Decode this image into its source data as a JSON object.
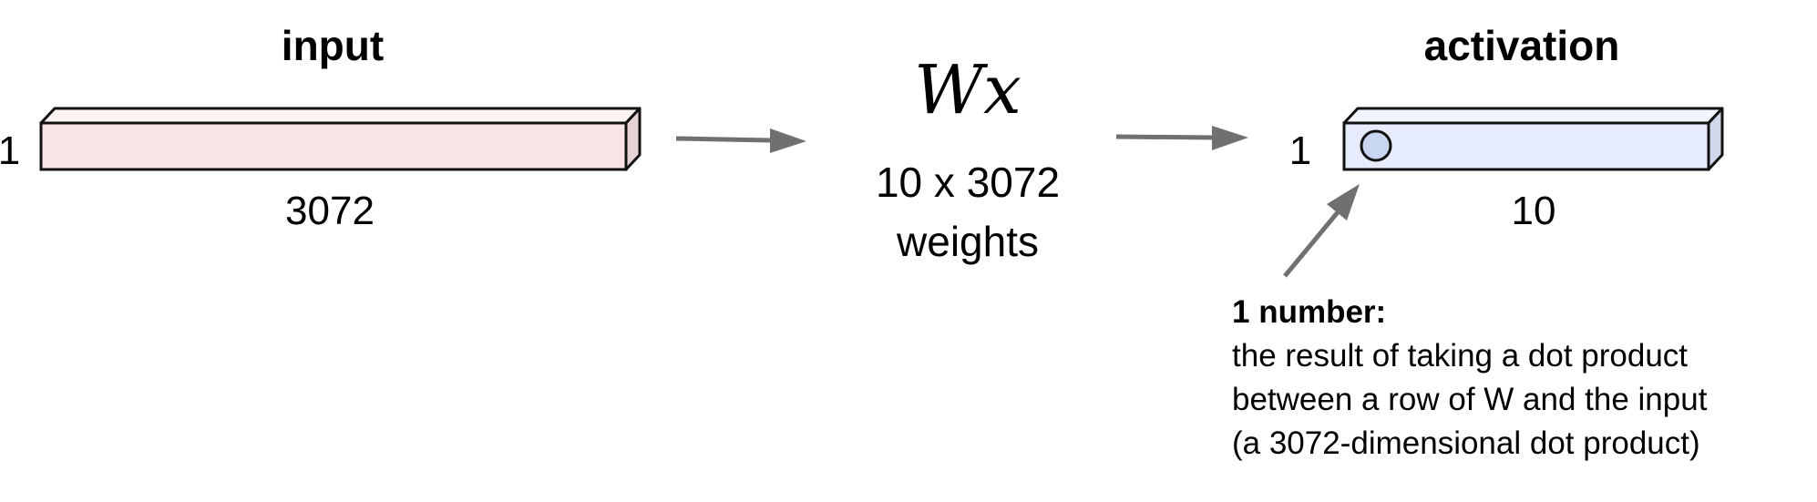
{
  "input": {
    "title": "input",
    "rows_label": "1",
    "length_label": "3072",
    "fill_color": "#f8e4e4"
  },
  "weights": {
    "formula": "Wx",
    "size_label": "10 x 3072",
    "caption": "weights"
  },
  "activation": {
    "title": "activation",
    "rows_label": "1",
    "length_label": "10",
    "fill_color": "#e6ecfb",
    "neuron_fill": "#c8d6f0"
  },
  "annotation": {
    "heading": "1 number:",
    "lines": [
      "the result of taking a dot product",
      "between a row of W and the input",
      "(a 3072-dimensional dot product)"
    ]
  },
  "arrow_color": "#707070",
  "outline_color": "#111111"
}
